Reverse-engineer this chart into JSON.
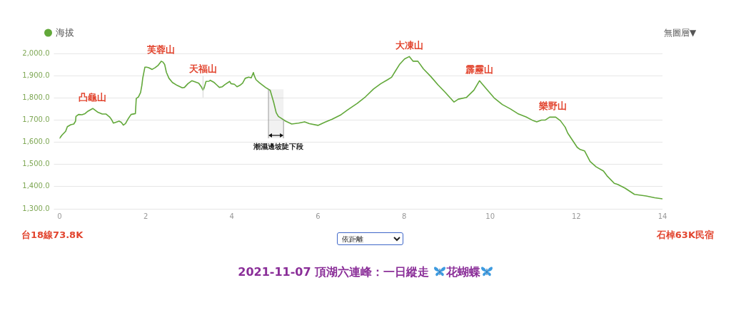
{
  "chart_data": {
    "type": "line",
    "title": "2021-11-07 頂湖六連峰：一日縱走 花蝴蝶",
    "x": [
      0,
      0.06,
      0.14,
      0.18,
      0.26,
      0.33,
      0.37,
      0.38,
      0.44,
      0.52,
      0.59,
      0.66,
      0.77,
      0.88,
      0.99,
      1.08,
      1.16,
      1.2,
      1.25,
      1.31,
      1.38,
      1.43,
      1.48,
      1.53,
      1.6,
      1.66,
      1.76,
      1.78,
      1.83,
      1.88,
      1.91,
      1.93,
      1.98,
      2.02,
      2.07,
      2.15,
      2.22,
      2.29,
      2.36,
      2.4,
      2.44,
      2.48,
      2.54,
      2.62,
      2.73,
      2.85,
      2.9,
      2.98,
      3.07,
      3.14,
      3.23,
      3.29,
      3.33,
      3.36,
      3.4,
      3.47,
      3.5,
      3.59,
      3.65,
      3.71,
      3.78,
      3.84,
      3.95,
      3.98,
      4.06,
      4.12,
      4.2,
      4.25,
      4.31,
      4.39,
      4.45,
      4.5,
      4.52,
      4.56,
      4.64,
      4.78,
      4.89,
      4.97,
      5.03,
      5.08,
      5.25,
      5.39,
      5.55,
      5.69,
      5.8,
      6.0,
      6.16,
      6.33,
      6.52,
      6.69,
      6.91,
      7.1,
      7.29,
      7.46,
      7.62,
      7.71,
      7.79,
      7.9,
      8.01,
      8.12,
      8.21,
      8.32,
      8.45,
      8.62,
      8.79,
      8.95,
      9.16,
      9.26,
      9.45,
      9.56,
      9.62,
      9.75,
      9.89,
      10.09,
      10.28,
      10.47,
      10.64,
      10.83,
      11.0,
      11.08,
      11.19,
      11.28,
      11.38,
      11.52,
      11.63,
      11.74,
      11.8,
      11.91,
      12.02,
      12.09,
      12.19,
      12.32,
      12.46,
      12.63,
      12.71,
      12.88,
      12.96,
      13.13,
      13.35,
      13.62,
      13.82,
      14
    ],
    "series": [
      {
        "name": "海拔",
        "color": "#62a83a",
        "values": [
          1618,
          1633,
          1649,
          1670,
          1679,
          1682,
          1695,
          1716,
          1725,
          1724,
          1729,
          1740,
          1752,
          1736,
          1727,
          1727,
          1714,
          1704,
          1686,
          1690,
          1695,
          1690,
          1677,
          1684,
          1708,
          1725,
          1729,
          1797,
          1804,
          1824,
          1856,
          1888,
          1938,
          1938,
          1936,
          1928,
          1936,
          1947,
          1965,
          1961,
          1950,
          1915,
          1888,
          1869,
          1856,
          1845,
          1847,
          1864,
          1877,
          1872,
          1866,
          1850,
          1834,
          1847,
          1874,
          1875,
          1879,
          1869,
          1858,
          1847,
          1850,
          1860,
          1874,
          1864,
          1861,
          1850,
          1858,
          1866,
          1888,
          1893,
          1890,
          1914,
          1900,
          1882,
          1868,
          1847,
          1834,
          1781,
          1733,
          1716,
          1695,
          1682,
          1686,
          1692,
          1684,
          1676,
          1690,
          1704,
          1722,
          1746,
          1775,
          1804,
          1840,
          1864,
          1882,
          1893,
          1918,
          1952,
          1975,
          1986,
          1965,
          1965,
          1930,
          1896,
          1858,
          1826,
          1781,
          1794,
          1802,
          1823,
          1834,
          1877,
          1845,
          1800,
          1770,
          1750,
          1729,
          1714,
          1697,
          1692,
          1700,
          1700,
          1713,
          1713,
          1697,
          1668,
          1641,
          1609,
          1577,
          1567,
          1561,
          1513,
          1489,
          1470,
          1449,
          1415,
          1410,
          1393,
          1365,
          1358,
          1350,
          1345
        ]
      }
    ],
    "xlim": [
      0,
      14
    ],
    "xticks": [
      0,
      2,
      4,
      6,
      8,
      10,
      12,
      14
    ],
    "ylim": [
      1300,
      2000
    ],
    "yticks": [
      {
        "value": 1300,
        "label": "1,300.0"
      },
      {
        "value": 1400,
        "label": "1,400.0"
      },
      {
        "value": 1500,
        "label": "1,500.0"
      },
      {
        "value": 1600,
        "label": "1,600.0"
      },
      {
        "value": 1700,
        "label": "1,700.0"
      },
      {
        "value": 1800,
        "label": "1,800.0"
      },
      {
        "value": 1900,
        "label": "1,900.0"
      },
      {
        "value": 2000,
        "label": "2,000.0"
      }
    ],
    "grid": "y",
    "legend": "top left",
    "ref_lines": [
      {
        "axis": "x",
        "value": 3.33,
        "label": "天福山",
        "color": "#d4d4d4"
      }
    ],
    "bands": [
      {
        "axis": "x",
        "from": 4.85,
        "to": 5.2,
        "label": "潮濕邊坡陡下段"
      }
    ],
    "annotations": [
      "台18線73.8K",
      "石棹63K民宿",
      "無圖層▼",
      "依距離",
      {
        "text": "凸龜山",
        "x": 0.77,
        "y": 1752
      },
      {
        "text": "芙蓉山",
        "x": 2.36,
        "y": 1965
      },
      {
        "text": "大凍山",
        "x": 8.12,
        "y": 1986
      },
      {
        "text": "霹靂山",
        "x": 9.75,
        "y": 1877
      },
      {
        "text": "樂野山",
        "x": 11.45,
        "y": 1713
      }
    ]
  }
}
